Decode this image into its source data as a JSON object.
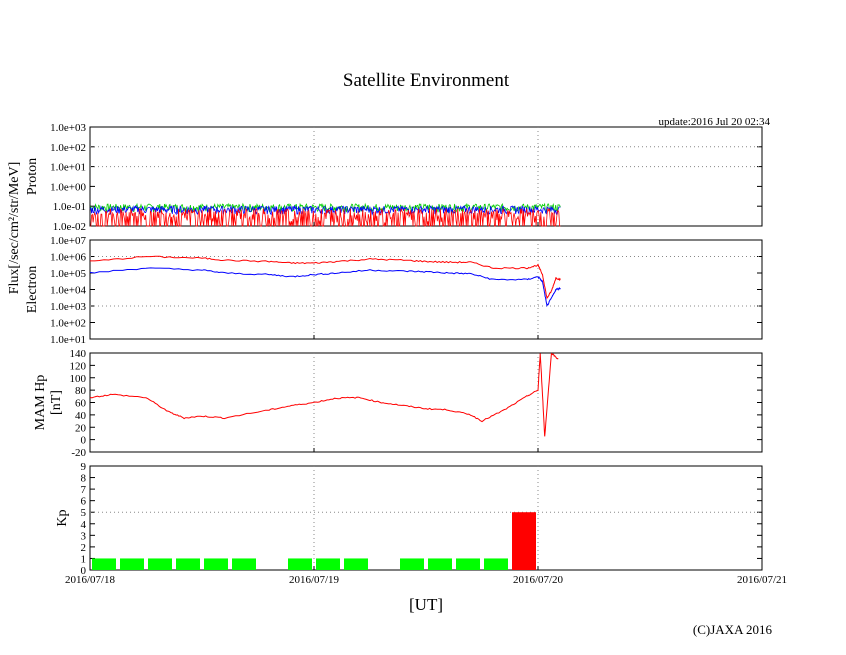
{
  "chart_data": {
    "title": "Satellite Environment",
    "update": "update:2016 Jul 20 02:34",
    "copyright": "(C)JAXA 2016",
    "xlabel": "[UT]",
    "flux_label": "Flux[/sec/cm²/str/MeV]",
    "x_ticks": [
      "2016/07/18",
      "2016/07/19",
      "2016/07/20",
      "2016/07/21"
    ],
    "x_range_days": [
      0,
      3
    ],
    "grid": "dotted at each day boundary and selected y ticks",
    "panels": [
      {
        "type": "line",
        "ylabel": "Proton",
        "scale": "log",
        "ylim": [
          0.01,
          1000
        ],
        "y_ticks": [
          "1.0e-02",
          "1.0e-01",
          "1.0e+00",
          "1.0e+01",
          "1.0e+02",
          "1.0e+03"
        ],
        "series": [
          {
            "color": "#00cc00",
            "baseline": 0.09,
            "noise": "high",
            "end": 2.1
          },
          {
            "color": "#0000ff",
            "baseline": 0.07,
            "noise": "high",
            "end": 2.1
          },
          {
            "color": "#ff0000",
            "baseline": 0.03,
            "noise": "spiky",
            "end": 2.1
          }
        ]
      },
      {
        "type": "line",
        "ylabel": "Electron",
        "scale": "log",
        "ylim": [
          10,
          10000000
        ],
        "y_ticks": [
          "1.0e+01",
          "1.0e+02",
          "1.0e+03",
          "1.0e+04",
          "1.0e+05",
          "1.0e+06",
          "1.0e+07"
        ],
        "series": [
          {
            "color": "#ff0000",
            "points": [
              [
                0,
                500000
              ],
              [
                0.25,
                1000000
              ],
              [
                0.5,
                800000
              ],
              [
                0.6,
                600000
              ],
              [
                0.8,
                500000
              ],
              [
                0.9,
                400000
              ],
              [
                1.0,
                400000
              ],
              [
                1.1,
                500000
              ],
              [
                1.25,
                700000
              ],
              [
                1.4,
                600000
              ],
              [
                1.5,
                500000
              ],
              [
                1.6,
                450000
              ],
              [
                1.7,
                450000
              ],
              [
                1.8,
                200000
              ],
              [
                1.95,
                200000
              ],
              [
                2.0,
                300000
              ],
              [
                2.02,
                80000
              ],
              [
                2.04,
                3000
              ],
              [
                2.06,
                8000
              ],
              [
                2.08,
                50000
              ],
              [
                2.1,
                40000
              ]
            ]
          },
          {
            "color": "#0000ff",
            "points": [
              [
                0,
                100000
              ],
              [
                0.25,
                200000
              ],
              [
                0.5,
                150000
              ],
              [
                0.6,
                100000
              ],
              [
                0.8,
                80000
              ],
              [
                0.9,
                60000
              ],
              [
                1.0,
                80000
              ],
              [
                1.1,
                100000
              ],
              [
                1.25,
                150000
              ],
              [
                1.4,
                130000
              ],
              [
                1.5,
                120000
              ],
              [
                1.6,
                100000
              ],
              [
                1.7,
                90000
              ],
              [
                1.8,
                40000
              ],
              [
                1.95,
                40000
              ],
              [
                2.0,
                60000
              ],
              [
                2.02,
                30000
              ],
              [
                2.04,
                1000
              ],
              [
                2.06,
                3000
              ],
              [
                2.08,
                10000
              ],
              [
                2.1,
                12000
              ]
            ]
          }
        ]
      },
      {
        "type": "line",
        "ylabel": "MAM Hp",
        "ylabel2": "[nT]",
        "scale": "linear",
        "ylim": [
          -20,
          140
        ],
        "y_ticks": [
          "-20",
          "0",
          "20",
          "40",
          "60",
          "80",
          "100",
          "120",
          "140"
        ],
        "series": [
          {
            "color": "#ff0000",
            "points": [
              [
                0,
                68
              ],
              [
                0.1,
                73
              ],
              [
                0.25,
                68
              ],
              [
                0.35,
                45
              ],
              [
                0.42,
                35
              ],
              [
                0.5,
                38
              ],
              [
                0.6,
                35
              ],
              [
                0.8,
                48
              ],
              [
                0.9,
                55
              ],
              [
                1.0,
                60
              ],
              [
                1.1,
                67
              ],
              [
                1.2,
                68
              ],
              [
                1.3,
                60
              ],
              [
                1.4,
                55
              ],
              [
                1.5,
                50
              ],
              [
                1.6,
                48
              ],
              [
                1.7,
                40
              ],
              [
                1.75,
                30
              ],
              [
                1.85,
                48
              ],
              [
                1.95,
                70
              ],
              [
                2.0,
                80
              ],
              [
                2.01,
                140
              ],
              [
                2.03,
                5
              ],
              [
                2.06,
                140
              ],
              [
                2.09,
                130
              ]
            ]
          }
        ]
      },
      {
        "type": "bar",
        "ylabel": "Kp",
        "scale": "linear",
        "ylim": [
          0,
          9
        ],
        "y_ticks": [
          "0",
          "1",
          "2",
          "3",
          "4",
          "5",
          "6",
          "7",
          "8",
          "9"
        ],
        "bar_colors": {
          "quiet": "#00ff00",
          "storm": "#ff0000"
        },
        "bar_width_hours": 3,
        "bars": [
          {
            "start_hr": 0,
            "value": 1
          },
          {
            "start_hr": 3,
            "value": 1
          },
          {
            "start_hr": 6,
            "value": 1
          },
          {
            "start_hr": 9,
            "value": 1
          },
          {
            "start_hr": 12,
            "value": 1
          },
          {
            "start_hr": 15,
            "value": 1
          },
          {
            "start_hr": 21,
            "value": 1
          },
          {
            "start_hr": 24,
            "value": 1
          },
          {
            "start_hr": 27,
            "value": 1
          },
          {
            "start_hr": 33,
            "value": 1
          },
          {
            "start_hr": 36,
            "value": 1
          },
          {
            "start_hr": 39,
            "value": 1
          },
          {
            "start_hr": 42,
            "value": 1
          },
          {
            "start_hr": 45,
            "value": 5
          }
        ]
      }
    ]
  }
}
